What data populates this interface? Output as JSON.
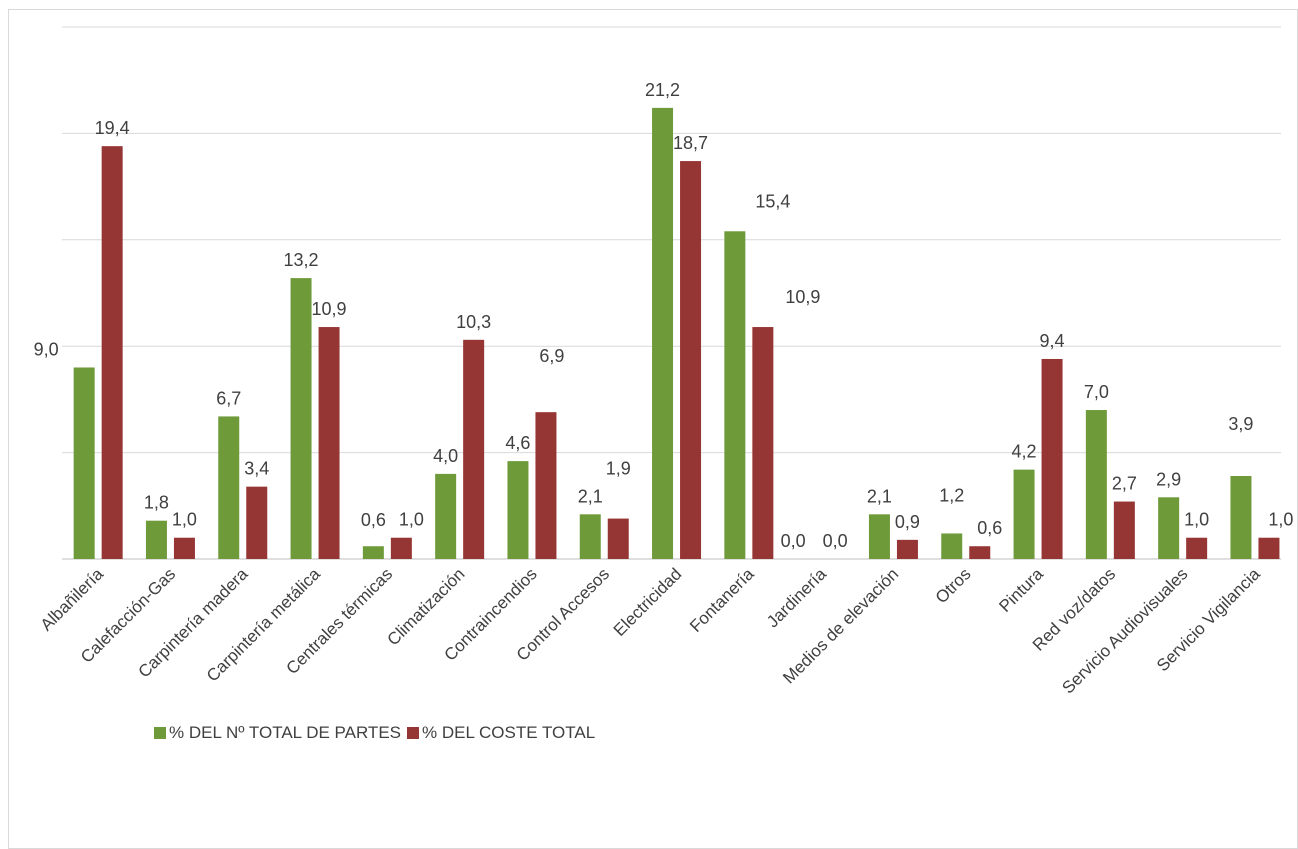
{
  "chart_data": {
    "type": "bar",
    "categories": [
      "Albañilería",
      "Calefacción-Gas",
      "Carpintería madera",
      "Carpintería metálica",
      "Centrales térmicas",
      "Climatización",
      "Contraincendios",
      "Control Accesos",
      "Electricidad",
      "Fontanería",
      "Jardinería",
      "Medios de elevación",
      "Otros",
      "Pintura",
      "Red voz/datos",
      "Servicio Audiovisuales",
      "Servicio Vigilancia"
    ],
    "series": [
      {
        "name": "% DEL Nº TOTAL DE PARTES",
        "color": "#6f9a3a",
        "values": [
          9.0,
          1.8,
          6.7,
          13.2,
          0.6,
          4.0,
          4.6,
          2.1,
          21.2,
          15.4,
          0.0,
          2.1,
          1.2,
          4.2,
          7.0,
          2.9,
          3.9
        ],
        "labels": [
          "9,0",
          "1,8",
          "6,7",
          "13,2",
          "0,6",
          "4,0",
          "4,6",
          "2,1",
          "21,2",
          "15,4",
          "0,0",
          "2,1",
          "1,2",
          "4,2",
          "7,0",
          "2,9",
          "3,9"
        ]
      },
      {
        "name": "% DEL COSTE TOTAL",
        "color": "#963634",
        "values": [
          19.4,
          1.0,
          3.4,
          10.9,
          1.0,
          10.3,
          6.9,
          1.9,
          18.7,
          10.9,
          0.0,
          0.9,
          0.6,
          9.4,
          2.7,
          1.0,
          1.0
        ],
        "labels": [
          "19,4",
          "1,0",
          "3,4",
          "10,9",
          "1,0",
          "10,3",
          "6,9",
          "1,9",
          "18,7",
          "10,9",
          "0,0",
          "0,9",
          "0,6",
          "9,4",
          "2,7",
          "1,0",
          "1,0"
        ]
      }
    ],
    "ylim": [
      0,
      25
    ],
    "grid": true,
    "legend_position": "bottom-left"
  }
}
